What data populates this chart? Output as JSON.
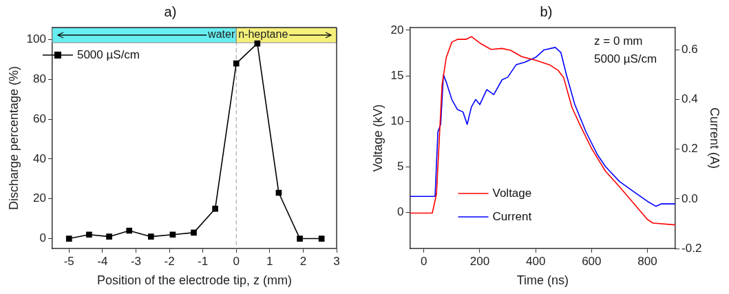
{
  "chart_data": [
    {
      "type": "line",
      "title": "a)",
      "xlabel": "Position of the electrode tip, z (mm)",
      "ylabel": "Discharge percentage (%)",
      "x": [
        -5,
        -4.4,
        -3.8,
        -3.2,
        -2.55,
        -1.9,
        -1.27,
        -0.63,
        0,
        0.63,
        1.27,
        1.9,
        2.55
      ],
      "series": [
        {
          "name": "5000 µS/cm",
          "color": "#000000",
          "values": [
            0,
            2,
            1,
            4,
            1,
            2,
            3,
            15,
            88,
            98,
            23,
            0,
            0
          ]
        }
      ],
      "xlim": [
        -5.5,
        3
      ],
      "xticks": [
        -5,
        -4,
        -3,
        -2,
        -1,
        0,
        1,
        2,
        3
      ],
      "ylim": [
        -5,
        106
      ],
      "yticks": [
        0,
        20,
        40,
        60,
        80,
        100
      ],
      "bands": [
        {
          "axis": "x",
          "from": -5.5,
          "to": 0,
          "label": "water",
          "color": "#66eef0"
        },
        {
          "axis": "x",
          "from": 0,
          "to": 3,
          "label": "n-heptane",
          "color": "#f5f07a"
        }
      ],
      "ref_lines": [
        {
          "axis": "x",
          "value": 0,
          "label": null,
          "color": "#999999",
          "line_style": "dashed"
        }
      ],
      "marker": "square",
      "line_style": "solid",
      "legend": "top left",
      "grid": false
    },
    {
      "type": "line",
      "title": "b)",
      "xlabel": "Time (ns)",
      "ylabel": "Voltage (kV)",
      "y2label": "Current (A)",
      "series": [
        {
          "name": "Voltage",
          "color": "#ff0000",
          "x": [
            -50,
            30,
            45,
            55,
            65,
            80,
            100,
            120,
            150,
            170,
            200,
            240,
            280,
            310,
            350,
            400,
            450,
            480,
            500,
            530,
            560,
            600,
            650,
            700,
            750,
            800,
            820,
            900
          ],
          "values": [
            -0.1,
            -0.1,
            2,
            8,
            14,
            17,
            18.7,
            19,
            19,
            19.3,
            18.6,
            17.9,
            18,
            17.8,
            17.1,
            16.7,
            16.2,
            15.6,
            14.8,
            11.5,
            9.5,
            7,
            4.5,
            2.8,
            1,
            -0.8,
            -1.2,
            -1.4
          ]
        },
        {
          "name": "Current",
          "color": "#0000ff",
          "axis": "y2",
          "x": [
            -50,
            40,
            50,
            60,
            70,
            80,
            100,
            120,
            140,
            155,
            170,
            185,
            200,
            225,
            250,
            280,
            300,
            330,
            360,
            400,
            430,
            470,
            490,
            510,
            540,
            580,
            620,
            650,
            700,
            750,
            800,
            830,
            850,
            900
          ],
          "values": [
            0.01,
            0.01,
            0.27,
            0.3,
            0.5,
            0.47,
            0.4,
            0.36,
            0.35,
            0.3,
            0.37,
            0.4,
            0.38,
            0.44,
            0.42,
            0.48,
            0.49,
            0.54,
            0.55,
            0.57,
            0.6,
            0.61,
            0.59,
            0.5,
            0.38,
            0.27,
            0.18,
            0.13,
            0.07,
            0.03,
            -0.01,
            -0.03,
            -0.02,
            -0.02
          ]
        }
      ],
      "xlim": [
        -50,
        900
      ],
      "xticks": [
        0,
        200,
        400,
        600,
        800
      ],
      "ylim": [
        -4,
        20.3
      ],
      "yticks": [
        0,
        5,
        10,
        15,
        20
      ],
      "y2lim": [
        -0.2,
        0.69
      ],
      "y2ticks": [
        {
          "value": -0.2,
          "label": "-0.2"
        },
        {
          "value": 0,
          "label": "0.0"
        },
        {
          "value": 0.2,
          "label": "0.2"
        },
        {
          "value": 0.4,
          "label": "0.4"
        },
        {
          "value": 0.6,
          "label": "0.6"
        }
      ],
      "annotations": [
        "z = 0 mm",
        "5000 µS/cm"
      ],
      "marker": "none",
      "line_style": "solid",
      "legend": "bottom left",
      "grid": false
    }
  ]
}
